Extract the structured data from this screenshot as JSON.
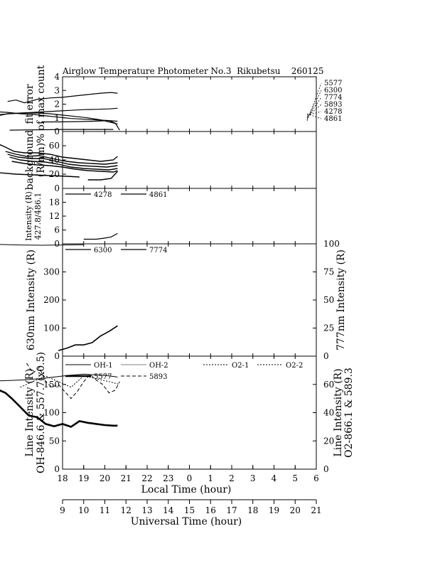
{
  "title": {
    "text": "Airglow Temperature Photometer No.3  Rikubetsu    260125"
  },
  "colors": {
    "ink": "#000000",
    "background": "#ffffff"
  },
  "chart_data": [
    {
      "type": "line",
      "id": "fit-error",
      "ylabel": [
        "fit error",
        "% of max count"
      ],
      "ylim": [
        0,
        4
      ],
      "yticks": [
        0,
        1,
        2,
        3,
        4
      ],
      "series": [
        {
          "name": "5577",
          "x": [
            14.8,
            15.4,
            16.0,
            16.6,
            17.2,
            17.8,
            18.4,
            19.0,
            19.6,
            20.2,
            20.6
          ],
          "values": [
            1.1,
            1.3,
            1.35,
            1.4,
            1.45,
            1.5,
            1.55,
            1.6,
            1.62,
            1.65,
            1.7
          ]
        },
        {
          "name": "6300",
          "x": [
            15.4,
            15.8,
            16.2,
            16.8,
            17.4,
            18.0,
            18.6,
            19.2,
            19.8,
            20.3,
            20.6
          ],
          "values": [
            2.2,
            2.3,
            2.1,
            2.35,
            2.45,
            2.5,
            2.6,
            2.7,
            2.8,
            2.85,
            2.8
          ]
        },
        {
          "name": "7774",
          "x": [
            14.8,
            15.4,
            16.0,
            16.6,
            17.2,
            17.8,
            18.4,
            19.0,
            19.6,
            20.2,
            20.6
          ],
          "values": [
            1.45,
            1.4,
            1.3,
            1.25,
            1.15,
            1.05,
            0.95,
            0.9,
            0.85,
            0.8,
            0.75
          ]
        },
        {
          "name": "5893",
          "x": [
            14.8,
            15.5,
            16.2,
            16.8,
            17.4,
            18.0,
            18.6,
            19.2,
            19.8,
            20.2,
            20.6
          ],
          "values": [
            1.2,
            1.3,
            1.35,
            1.35,
            1.3,
            1.2,
            1.1,
            1.0,
            0.85,
            0.7,
            0.55
          ]
        },
        {
          "name": "4278",
          "x": [
            15.5,
            16.4,
            17.2,
            18.0,
            18.8,
            19.6,
            20.4
          ],
          "values": [
            0.1,
            0.12,
            0.13,
            0.15,
            0.15,
            0.15,
            0.15
          ]
        },
        {
          "name": "4861",
          "x": [
            17.0,
            17.8,
            18.6,
            19.4,
            20.2,
            20.5,
            20.7
          ],
          "values": [
            0.7,
            0.7,
            0.72,
            0.75,
            0.8,
            0.6,
            0.1
          ]
        }
      ],
      "legend": [
        "5577",
        "6300",
        "7774",
        "5893",
        "4278",
        "4861"
      ]
    },
    {
      "type": "line",
      "id": "background",
      "ylabel": [
        "background",
        "(R/nm)"
      ],
      "ylim": [
        0,
        80
      ],
      "yticks": [
        0,
        20,
        40,
        60
      ],
      "series": [
        {
          "name": "bg-1",
          "x": [
            14.8,
            15.0,
            15.3,
            15.7,
            16.2,
            16.8,
            17.4,
            18.0,
            18.6,
            19.2,
            19.8,
            20.4,
            20.6
          ],
          "values": [
            78,
            62,
            58,
            52,
            50,
            50,
            48,
            44,
            42,
            40,
            38,
            40,
            45
          ]
        },
        {
          "name": "bg-2",
          "x": [
            15.3,
            15.8,
            16.3,
            16.9,
            17.5,
            18.2,
            18.8,
            19.4,
            20.0,
            20.6
          ],
          "values": [
            52,
            48,
            45,
            46,
            42,
            38,
            36,
            35,
            34,
            36
          ]
        },
        {
          "name": "bg-3",
          "x": [
            15.4,
            15.9,
            16.5,
            17.1,
            17.7,
            18.3,
            18.9,
            19.5,
            20.1,
            20.6
          ],
          "values": [
            48,
            44,
            42,
            42,
            38,
            34,
            32,
            31,
            30,
            32
          ]
        },
        {
          "name": "bg-4",
          "x": [
            15.5,
            16.0,
            16.6,
            17.2,
            17.8,
            18.4,
            19.0,
            19.6,
            20.2,
            20.6
          ],
          "values": [
            44,
            40,
            38,
            37,
            34,
            30,
            28,
            27,
            26,
            28
          ]
        },
        {
          "name": "bg-5",
          "x": [
            15.6,
            16.2,
            16.8,
            17.4,
            18.0,
            18.6,
            19.2,
            19.8,
            20.4,
            20.6
          ],
          "values": [
            38,
            35,
            33,
            32,
            30,
            27,
            25,
            24,
            23,
            25
          ]
        },
        {
          "name": "bg-6",
          "x": [
            15.0,
            15.8,
            16.6,
            17.4,
            18.2,
            18.8
          ],
          "values": [
            22,
            20,
            19,
            18,
            17,
            16
          ]
        },
        {
          "name": "bg-7",
          "x": [
            19.2,
            19.8,
            20.3,
            20.6
          ],
          "values": [
            12,
            12,
            14,
            24
          ]
        }
      ]
    },
    {
      "type": "line",
      "id": "ratio",
      "ylabel": [
        "Intensity (R)",
        "427.8/486.1"
      ],
      "ylim": [
        0,
        24
      ],
      "yticks": [
        0,
        6,
        12,
        18
      ],
      "series": [
        {
          "name": "4278",
          "x": [],
          "values": []
        },
        {
          "name": "4861",
          "x": [
            19.0,
            19.6,
            20.0,
            20.3,
            20.6
          ],
          "values": [
            2,
            2,
            2.5,
            3,
            4.5
          ]
        }
      ],
      "legend": [
        "4278",
        "4861"
      ]
    },
    {
      "type": "line",
      "id": "red-line",
      "ylabel_left": "630nm Intensity (R)",
      "ylabel_right": "777nm Intensity (R)",
      "ylim_left": [
        0,
        400
      ],
      "ylim_right": [
        0,
        100
      ],
      "yticks_left": [
        0,
        100,
        200,
        300
      ],
      "yticks_right": [
        0,
        25,
        50,
        75,
        100
      ],
      "series": [
        {
          "name": "6300",
          "axis": "left",
          "x": [
            15.0,
            16.0,
            17.0,
            18.0,
            19.0
          ],
          "values": [
            398,
            396,
            395,
            396,
            397
          ]
        },
        {
          "name": "7774",
          "axis": "right",
          "x": [
            17.8,
            18.2,
            18.6,
            19.0,
            19.4,
            19.8,
            20.2,
            20.6
          ],
          "values": [
            5,
            7,
            10,
            10,
            12,
            18,
            22,
            27
          ]
        }
      ],
      "legend": [
        "6300",
        "7774"
      ]
    },
    {
      "type": "line",
      "id": "line-intensity",
      "ylabel_left": [
        "Line Intensity (R)",
        "OH-846.6 & 557.7(x0.5)"
      ],
      "ylabel_right": [
        "Line Intensity (R)",
        "O2-866.1 & 589.3"
      ],
      "ylim_left": [
        0,
        200
      ],
      "ylim_right": [
        0,
        80
      ],
      "yticks_left": [
        0,
        50,
        100,
        150
      ],
      "yticks_right": [
        0,
        20,
        40,
        60
      ],
      "series": [
        {
          "name": "OH-1",
          "axis": "left",
          "x": [
            14.8,
            15.5,
            16.2,
            16.9,
            17.6,
            18.3,
            19.0,
            19.6,
            20.2,
            20.6
          ],
          "values": [
            156,
            157,
            158,
            160,
            163,
            166,
            168,
            167,
            165,
            163
          ]
        },
        {
          "name": "OH-2",
          "axis": "left",
          "x": [],
          "values": []
        },
        {
          "name": "5577",
          "axis": "left",
          "x": [
            14.8,
            15.0,
            15.3,
            15.6,
            16.0,
            16.4,
            16.8,
            17.2,
            17.6,
            18.0,
            18.4,
            18.8,
            19.2,
            19.6,
            20.0,
            20.4,
            20.6
          ],
          "values": [
            135,
            140,
            135,
            125,
            110,
            95,
            92,
            80,
            76,
            80,
            75,
            85,
            82,
            80,
            78,
            77,
            77
          ]
        },
        {
          "name": "5893",
          "axis": "right",
          "x": [
            16.3,
            16.6,
            16.9,
            17.2,
            17.5,
            17.8,
            18.1,
            18.4,
            18.7,
            19.0,
            19.3,
            19.6,
            19.9,
            20.2,
            20.5,
            20.7
          ],
          "values": [
            75,
            68,
            72,
            62,
            58,
            60,
            55,
            50,
            55,
            62,
            67,
            63,
            60,
            54,
            56,
            62
          ]
        },
        {
          "name": "O2-1",
          "axis": "right",
          "x": [
            16.0,
            16.6,
            17.2,
            17.8,
            18.4,
            19.0
          ],
          "values": [
            58,
            62,
            66,
            62,
            58,
            66
          ]
        },
        {
          "name": "O2-2",
          "axis": "right",
          "x": [
            19.0,
            19.6,
            20.2,
            20.7
          ],
          "values": [
            66,
            64,
            62,
            60
          ]
        }
      ],
      "legend": [
        "OH-1",
        "OH-2",
        "O2-1",
        "O2-2",
        "5577",
        "5893"
      ]
    }
  ],
  "axes": {
    "local_time": {
      "label": "Local Time (hour)",
      "ticks": [
        "18",
        "19",
        "20",
        "21",
        "22",
        "23",
        "0",
        "1",
        "2",
        "3",
        "4",
        "5",
        "6"
      ]
    },
    "universal_time": {
      "label": "Universal Time (hour)",
      "ticks": [
        "9",
        "10",
        "11",
        "12",
        "13",
        "14",
        "15",
        "16",
        "17",
        "18",
        "19",
        "20",
        "21"
      ]
    }
  }
}
